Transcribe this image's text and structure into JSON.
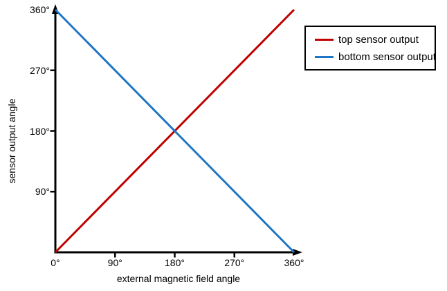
{
  "chart_data": {
    "type": "line",
    "title": "",
    "xlabel": "external magnetic field angle",
    "ylabel": "sensor output angle",
    "xlim": [
      0,
      360
    ],
    "ylim": [
      0,
      360
    ],
    "grid": false,
    "legend_position": "top-right",
    "background_color": "#ffffff",
    "axis_color": "#000000",
    "xticks": {
      "values": [
        0,
        90,
        180,
        270,
        360
      ],
      "labels": [
        "0°",
        "90°",
        "180°",
        "270°",
        "360°"
      ]
    },
    "yticks": {
      "values": [
        90,
        180,
        270,
        360
      ],
      "labels": [
        "90°",
        "180°",
        "270°",
        "360°"
      ]
    },
    "series": [
      {
        "name": "top sensor output",
        "color": "#c00000",
        "x": [
          0,
          360
        ],
        "y": [
          0,
          360
        ]
      },
      {
        "name": "bottom sensor output",
        "color": "#2076c4",
        "x": [
          0,
          360
        ],
        "y": [
          360,
          0
        ]
      }
    ]
  }
}
